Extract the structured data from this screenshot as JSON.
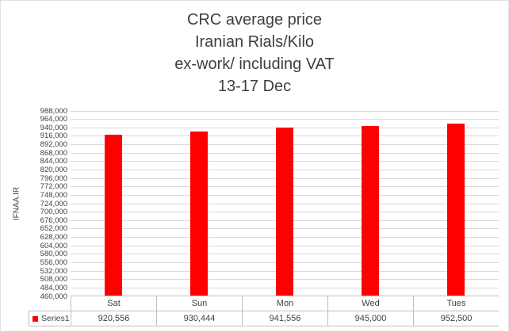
{
  "chart_data": {
    "type": "bar",
    "title_lines": [
      "CRC average price",
      "Iranian Rials/Kilo",
      "ex-work/ including VAT",
      "13-17 Dec"
    ],
    "ylabel": "IFNAA.IR",
    "categories": [
      "Sat",
      "Sun",
      "Mon",
      "Wed",
      "Tues"
    ],
    "series": [
      {
        "name": "Series1",
        "values": [
          920556,
          930444,
          941556,
          945000,
          952500
        ]
      }
    ],
    "value_labels": [
      "920,556",
      "930,444",
      "941,556",
      "945,000",
      "952,500"
    ],
    "ylim": [
      460000,
      988000
    ],
    "ytick_step": 24000,
    "ytick_labels": [
      "988,000",
      "964,000",
      "940,000",
      "916,000",
      "892,000",
      "868,000",
      "844,000",
      "820,000",
      "796,000",
      "772,000",
      "748,000",
      "724,000",
      "700,000",
      "676,000",
      "652,000",
      "628,000",
      "604,000",
      "580,000",
      "556,000",
      "532,000",
      "508,000",
      "484,000",
      "460,000"
    ],
    "grid": true,
    "legend_position": "bottom-table"
  },
  "colors": {
    "bar": "#FF0000",
    "gridline": "#D9D9D9",
    "table_border": "#BFBFBF",
    "text": "#404040"
  }
}
